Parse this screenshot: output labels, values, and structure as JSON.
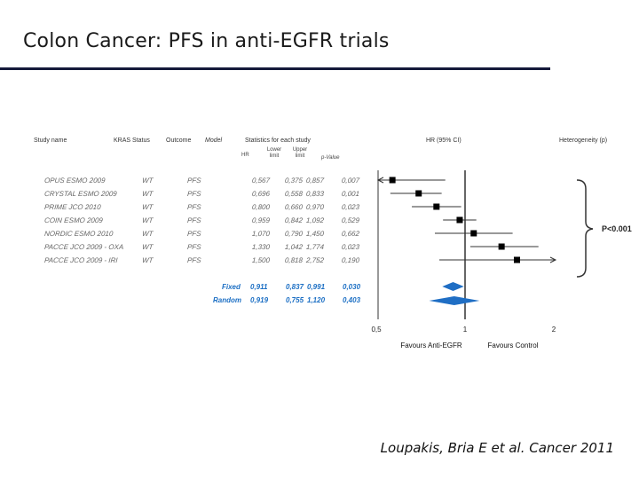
{
  "slide": {
    "title": "Colon Cancer: PFS in anti-EGFR trials",
    "citation": "Loupakis, Bria E et al. Cancer 2011"
  },
  "table": {
    "headers": {
      "study": "Study name",
      "kras": "KRAS Status",
      "outcome": "Outcome",
      "model": "Model",
      "stats": "Statistics for each study",
      "hr": "HR",
      "lower": "Lower limit",
      "upper": "Upper limit",
      "pvalue": "p-Value",
      "hrci": "HR (95% CI)",
      "heterogeneity": "Heterogeneity (p)"
    },
    "rows": [
      {
        "study": "OPUS ESMO 2009",
        "kras": "WT",
        "outcome": "PFS",
        "hr": "0,567",
        "lower": "0,375",
        "upper": "0,857",
        "p": "0,007"
      },
      {
        "study": "CRYSTAL ESMO 2009",
        "kras": "WT",
        "outcome": "PFS",
        "hr": "0,696",
        "lower": "0,558",
        "upper": "0,833",
        "p": "0,001"
      },
      {
        "study": "PRIME JCO 2010",
        "kras": "WT",
        "outcome": "PFS",
        "hr": "0,800",
        "lower": "0,660",
        "upper": "0,970",
        "p": "0,023"
      },
      {
        "study": "COIN ESMO 2009",
        "kras": "WT",
        "outcome": "PFS",
        "hr": "0,959",
        "lower": "0,842",
        "upper": "1,092",
        "p": "0,529"
      },
      {
        "study": "NORDIC ESMO 2010",
        "kras": "WT",
        "outcome": "PFS",
        "hr": "1,070",
        "lower": "0,790",
        "upper": "1,450",
        "p": "0,662"
      },
      {
        "study": "PACCE JCO 2009 - OXA",
        "kras": "WT",
        "outcome": "PFS",
        "hr": "1,330",
        "lower": "1,042",
        "upper": "1,774",
        "p": "0,023"
      },
      {
        "study": "PACCE JCO 2009 - IRI",
        "kras": "WT",
        "outcome": "PFS",
        "hr": "1,500",
        "lower": "0,818",
        "upper": "2,752",
        "p": "0,190"
      }
    ],
    "summary": [
      {
        "label": "Fixed",
        "hr": "0,911",
        "lower": "0,837",
        "upper": "0,991",
        "p": "0,030"
      },
      {
        "label": "Random",
        "hr": "0,919",
        "lower": "0,755",
        "upper": "1,120",
        "p": "0,403"
      }
    ]
  },
  "chart_data": {
    "type": "forest",
    "scale": "log",
    "xlim": [
      0.5,
      2
    ],
    "ticks": [
      "0,5",
      "1",
      "2"
    ],
    "tick_values": [
      0.5,
      1,
      2
    ],
    "reference_line": 1,
    "favour_left": "Favours Anti-EGFR",
    "favour_right": "Favours Control",
    "heterogeneity_label": "P<0.001",
    "studies": [
      {
        "name": "OPUS ESMO 2009",
        "hr": 0.567,
        "lower": 0.375,
        "upper": 0.857
      },
      {
        "name": "CRYSTAL ESMO 2009",
        "hr": 0.696,
        "lower": 0.558,
        "upper": 0.833
      },
      {
        "name": "PRIME JCO 2010",
        "hr": 0.8,
        "lower": 0.66,
        "upper": 0.97
      },
      {
        "name": "COIN ESMO 2009",
        "hr": 0.959,
        "lower": 0.842,
        "upper": 1.092
      },
      {
        "name": "NORDIC ESMO 2010",
        "hr": 1.07,
        "lower": 0.79,
        "upper": 1.45
      },
      {
        "name": "PACCE JCO 2009 - OXA",
        "hr": 1.33,
        "lower": 1.042,
        "upper": 1.774
      },
      {
        "name": "PACCE JCO 2009 - IRI",
        "hr": 1.5,
        "lower": 0.818,
        "upper": 2.752
      }
    ],
    "pooled": [
      {
        "name": "Fixed",
        "hr": 0.911,
        "lower": 0.837,
        "upper": 0.991
      },
      {
        "name": "Random",
        "hr": 0.919,
        "lower": 0.755,
        "upper": 1.12
      }
    ],
    "colors": {
      "marker": "#000000",
      "pooled": "#1f6ec4",
      "line": "#333333"
    }
  }
}
